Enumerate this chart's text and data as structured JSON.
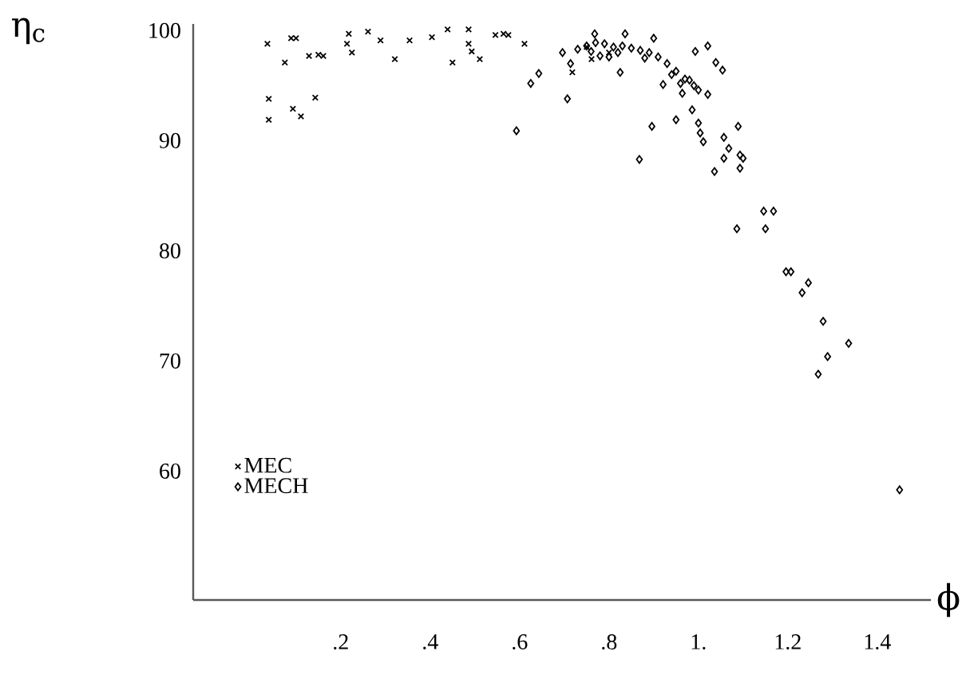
{
  "chart_data": {
    "type": "scatter",
    "xlabel": "ϕ",
    "ylabel": "η$_{c}$",
    "xlim": [
      -0.13,
      1.52
    ],
    "ylim": [
      48.3,
      100.6
    ],
    "xticks": [
      {
        "value": 0.2,
        "label": ".2"
      },
      {
        "value": 0.4,
        "label": ".4"
      },
      {
        "value": 0.6,
        "label": ".6"
      },
      {
        "value": 0.8,
        "label": ".8"
      },
      {
        "value": 1,
        "label": "1."
      },
      1.2,
      1.4
    ],
    "yticks": [
      60,
      70,
      80,
      90,
      100
    ],
    "grid": false,
    "legend": "bottom left",
    "series": [
      {
        "name": "MEC",
        "color": "#000000",
        "marker": "cross",
        "x": [
          0.036,
          0.075,
          0.089,
          0.1,
          0.129,
          0.15,
          0.161,
          0.039,
          0.039,
          0.093,
          0.111,
          0.143,
          0.218,
          0.214,
          0.225,
          0.261,
          0.289,
          0.321,
          0.354,
          0.404,
          0.439,
          0.45,
          0.486,
          0.486,
          0.493,
          0.511,
          0.546,
          0.564,
          0.575,
          0.611,
          0.761,
          0.718,
          0.75,
          0.8
        ],
        "values": [
          98.8,
          97.1,
          99.3,
          99.3,
          97.7,
          97.8,
          97.7,
          93.8,
          91.9,
          92.9,
          92.2,
          93.9,
          99.7,
          98.8,
          98.0,
          99.9,
          99.1,
          97.4,
          99.1,
          99.4,
          100.1,
          97.1,
          100.1,
          98.8,
          98.1,
          97.4,
          99.6,
          99.7,
          99.6,
          98.8,
          97.4,
          96.2,
          98.5,
          98.0
        ]
      },
      {
        "name": "MECH",
        "color": "#000000",
        "marker": "diamond",
        "x": [
          0.593,
          0.625,
          0.643,
          0.707,
          0.696,
          0.714,
          0.768,
          0.825,
          0.836,
          0.868,
          0.896,
          0.9,
          0.921,
          0.95,
          0.964,
          0.986,
          0.993,
          1.0,
          1.004,
          1.011,
          1.021,
          1.021,
          1.039,
          1.054,
          1.036,
          1.057,
          1.057,
          1.068,
          1.089,
          1.093,
          1.1,
          1.093,
          1.086,
          1.146,
          1.168,
          1.15,
          1.196,
          1.207,
          1.246,
          1.232,
          1.279,
          1.336,
          1.289,
          1.268,
          1.45,
          0.73,
          0.75,
          0.77,
          0.79,
          0.81,
          0.83,
          0.85,
          0.87,
          0.89,
          0.91,
          0.93,
          0.95,
          0.97,
          0.99,
          1.0,
          0.76,
          0.78,
          0.8,
          0.82,
          0.88,
          0.94,
          0.96,
          0.98
        ],
        "values": [
          90.9,
          95.2,
          96.1,
          93.8,
          98.0,
          97.0,
          99.7,
          96.2,
          99.7,
          88.3,
          91.3,
          99.3,
          95.1,
          91.9,
          94.3,
          92.8,
          98.1,
          91.6,
          90.7,
          89.9,
          98.6,
          94.2,
          97.1,
          96.4,
          87.2,
          88.4,
          90.3,
          89.3,
          91.3,
          88.7,
          88.4,
          87.5,
          82.0,
          83.6,
          83.6,
          82.0,
          78.1,
          78.1,
          77.1,
          76.2,
          73.6,
          71.6,
          70.4,
          68.8,
          58.3,
          98.3,
          98.6,
          98.9,
          98.8,
          98.5,
          98.6,
          98.4,
          98.2,
          98.0,
          97.6,
          97.0,
          96.3,
          95.6,
          95.0,
          94.6,
          98.1,
          97.7,
          97.6,
          98.0,
          97.5,
          96.0,
          95.2,
          95.5
        ]
      }
    ]
  }
}
